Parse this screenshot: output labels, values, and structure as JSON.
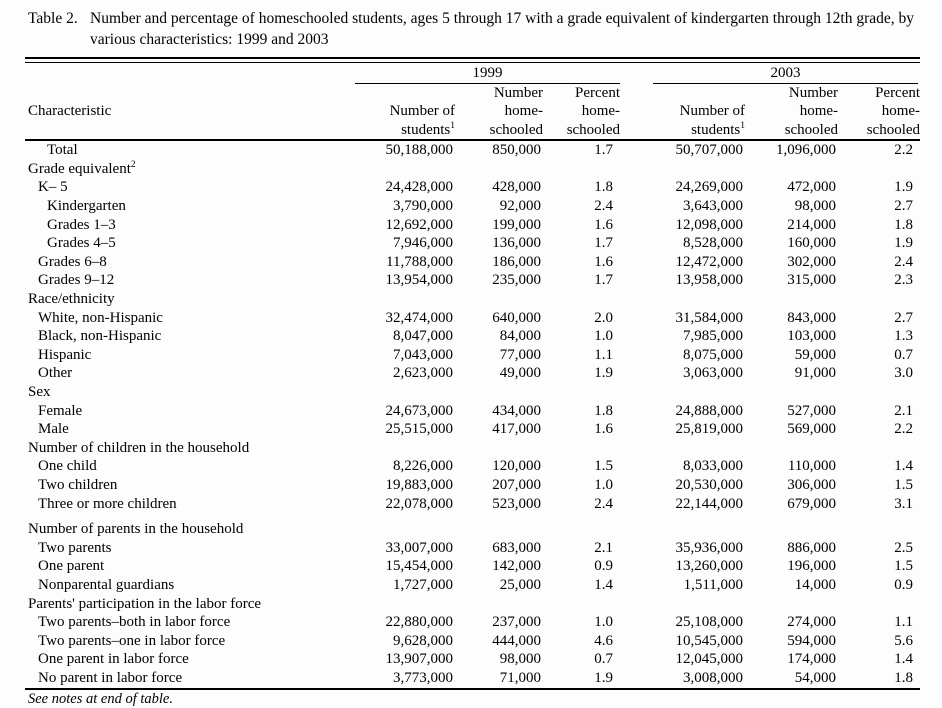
{
  "title": {
    "prefix": "Table 2.",
    "text": "Number and percentage of homeschooled students, ages 5 through 17 with a grade equivalent of kindergarten through 12th grade, by various characteristics: 1999 and 2003"
  },
  "footer": {
    "note": "See notes at end of table."
  },
  "table": {
    "groups": {
      "y1999": "1999",
      "y2003": "2003"
    },
    "header": {
      "characteristic": "Characteristic",
      "students_line1": "Number of",
      "students_line2": "students",
      "students_sup": "1",
      "number_line1": "Number",
      "number_line2": "home-",
      "number_line3": "schooled",
      "percent_line1": "Percent",
      "percent_line2": "home-",
      "percent_line3": "schooled"
    },
    "rows": [
      {
        "label": "Total",
        "type": "total",
        "indent": 2,
        "values": [
          "50,188,000",
          "850,000",
          "1.7",
          "50,707,000",
          "1,096,000",
          "2.2"
        ]
      },
      {
        "label": "Grade equivalent",
        "sup": "2",
        "type": "section",
        "indent": 0,
        "values": []
      },
      {
        "label": "K– 5",
        "type": "item",
        "indent": 1,
        "values": [
          "24,428,000",
          "428,000",
          "1.8",
          "24,269,000",
          "472,000",
          "1.9"
        ]
      },
      {
        "label": "Kindergarten",
        "type": "item",
        "indent": 2,
        "values": [
          "3,790,000",
          "92,000",
          "2.4",
          "3,643,000",
          "98,000",
          "2.7"
        ]
      },
      {
        "label": "Grades 1–3",
        "type": "item",
        "indent": 2,
        "values": [
          "12,692,000",
          "199,000",
          "1.6",
          "12,098,000",
          "214,000",
          "1.8"
        ]
      },
      {
        "label": "Grades 4–5",
        "type": "item",
        "indent": 2,
        "values": [
          "7,946,000",
          "136,000",
          "1.7",
          "8,528,000",
          "160,000",
          "1.9"
        ]
      },
      {
        "label": "Grades 6–8",
        "type": "item",
        "indent": 1,
        "values": [
          "11,788,000",
          "186,000",
          "1.6",
          "12,472,000",
          "302,000",
          "2.4"
        ]
      },
      {
        "label": "Grades 9–12",
        "type": "item",
        "indent": 1,
        "values": [
          "13,954,000",
          "235,000",
          "1.7",
          "13,958,000",
          "315,000",
          "2.3"
        ]
      },
      {
        "label": "Race/ethnicity",
        "type": "section",
        "indent": 0,
        "values": []
      },
      {
        "label": "White, non-Hispanic",
        "type": "item",
        "indent": 1,
        "values": [
          "32,474,000",
          "640,000",
          "2.0",
          "31,584,000",
          "843,000",
          "2.7"
        ]
      },
      {
        "label": "Black, non-Hispanic",
        "type": "item",
        "indent": 1,
        "values": [
          "8,047,000",
          "84,000",
          "1.0",
          "7,985,000",
          "103,000",
          "1.3"
        ]
      },
      {
        "label": "Hispanic",
        "type": "item",
        "indent": 1,
        "values": [
          "7,043,000",
          "77,000",
          "1.1",
          "8,075,000",
          "59,000",
          "0.7"
        ]
      },
      {
        "label": "Other",
        "type": "item",
        "indent": 1,
        "values": [
          "2,623,000",
          "49,000",
          "1.9",
          "3,063,000",
          "91,000",
          "3.0"
        ]
      },
      {
        "label": "Sex",
        "type": "section",
        "indent": 0,
        "values": []
      },
      {
        "label": "Female",
        "type": "item",
        "indent": 1,
        "values": [
          "24,673,000",
          "434,000",
          "1.8",
          "24,888,000",
          "527,000",
          "2.1"
        ]
      },
      {
        "label": "Male",
        "type": "item",
        "indent": 1,
        "values": [
          "25,515,000",
          "417,000",
          "1.6",
          "25,819,000",
          "569,000",
          "2.2"
        ]
      },
      {
        "label": "Number of children in the household",
        "type": "section",
        "indent": 0,
        "values": []
      },
      {
        "label": "One child",
        "type": "item",
        "indent": 1,
        "values": [
          "8,226,000",
          "120,000",
          "1.5",
          "8,033,000",
          "110,000",
          "1.4"
        ]
      },
      {
        "label": "Two children",
        "type": "item",
        "indent": 1,
        "values": [
          "19,883,000",
          "207,000",
          "1.0",
          "20,530,000",
          "306,000",
          "1.5"
        ]
      },
      {
        "label": "Three or more children",
        "type": "item",
        "indent": 1,
        "values": [
          "22,078,000",
          "523,000",
          "2.4",
          "22,144,000",
          "679,000",
          "3.1"
        ]
      },
      {
        "label": "Number of parents in the household",
        "type": "section",
        "indent": 0,
        "gap_before": true,
        "values": []
      },
      {
        "label": "Two parents",
        "type": "item",
        "indent": 1,
        "values": [
          "33,007,000",
          "683,000",
          "2.1",
          "35,936,000",
          "886,000",
          "2.5"
        ]
      },
      {
        "label": "One parent",
        "type": "item",
        "indent": 1,
        "values": [
          "15,454,000",
          "142,000",
          "0.9",
          "13,260,000",
          "196,000",
          "1.5"
        ]
      },
      {
        "label": "Nonparental guardians",
        "type": "item",
        "indent": 1,
        "values": [
          "1,727,000",
          "25,000",
          "1.4",
          "1,511,000",
          "14,000",
          "0.9"
        ]
      },
      {
        "label": "Parents' participation in the labor force",
        "type": "section",
        "indent": 0,
        "values": []
      },
      {
        "label": "Two parents–both in labor force",
        "type": "item",
        "indent": 1,
        "values": [
          "22,880,000",
          "237,000",
          "1.0",
          "25,108,000",
          "274,000",
          "1.1"
        ]
      },
      {
        "label": "Two parents–one in labor force",
        "type": "item",
        "indent": 1,
        "values": [
          "9,628,000",
          "444,000",
          "4.6",
          "10,545,000",
          "594,000",
          "5.6"
        ]
      },
      {
        "label": "One parent in labor force",
        "type": "item",
        "indent": 1,
        "values": [
          "13,907,000",
          "98,000",
          "0.7",
          "12,045,000",
          "174,000",
          "1.4"
        ]
      },
      {
        "label": "No parent in labor force",
        "type": "item",
        "indent": 1,
        "values": [
          "3,773,000",
          "71,000",
          "1.9",
          "3,008,000",
          "54,000",
          "1.8"
        ]
      }
    ]
  }
}
